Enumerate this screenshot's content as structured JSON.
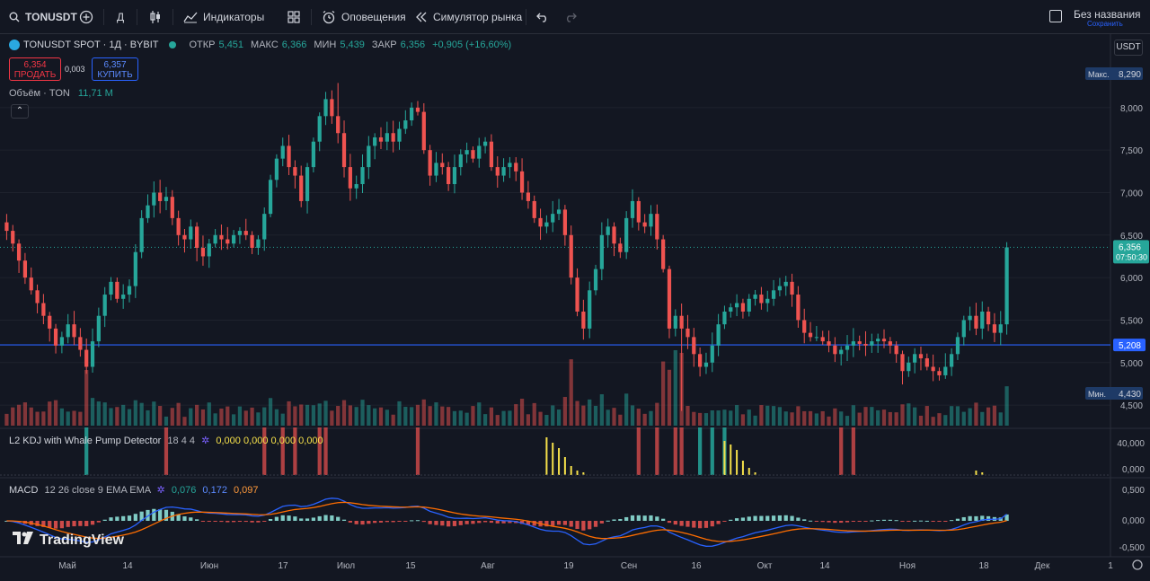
{
  "toolbar": {
    "symbol": "TONUSDT",
    "interval": "Д",
    "indicators_label": "Индикаторы",
    "alerts_label": "Оповещения",
    "replay_label": "Симулятор рынка",
    "layout_name": "Без названия",
    "save_label": "Сохранить"
  },
  "legend": {
    "title": "TONUSDT SPOT · 1Д · BYBIT",
    "open_label": "ОТКР",
    "open": "5,451",
    "high_label": "МАКС",
    "high": "6,366",
    "low_label": "МИН",
    "low": "5,439",
    "close_label": "ЗАКР",
    "close": "6,356",
    "change": "+0,905 (+16,60%)"
  },
  "trade": {
    "sell_price": "6,354",
    "sell_label": "ПРОДАТЬ",
    "spread": "0,003",
    "buy_price": "6,357",
    "buy_label": "КУПИТЬ"
  },
  "volume_legend": {
    "name": "Объём · TON",
    "value": "11,71 M"
  },
  "kdj_legend": {
    "name": "L2 KDJ with Whale Pump Detector",
    "params": "18 4 4",
    "values": [
      "0,000",
      "0,000",
      "0,000",
      "0,000"
    ]
  },
  "macd_legend": {
    "name": "MACD",
    "params": "12 26 close 9 EMA EMA",
    "v1": "0,076",
    "v2": "0,172",
    "v3": "0,097"
  },
  "branding": {
    "logo_text": "TradingView"
  },
  "colors": {
    "up": "#26a69a",
    "down": "#ef5350",
    "background": "#131722",
    "hline": "#2962ff"
  },
  "chart_data": {
    "type": "candlestick",
    "currency": "USDT",
    "ylim": [
      4.3,
      8.4
    ],
    "price_ticks": [
      "8,000",
      "7,500",
      "7,000",
      "6,500",
      "6,000",
      "5,500",
      "5,000",
      "4,500"
    ],
    "x_ticks": [
      "Май",
      "14",
      "Июн",
      "17",
      "Июл",
      "15",
      "Авг",
      "19",
      "Сен",
      "16",
      "Окт",
      "14",
      "Ноя",
      "18",
      "Дек",
      "1"
    ],
    "max_label": "Макс.",
    "max_value": "8,290",
    "min_label": "Мин.",
    "min_value": "4,430",
    "last_price": "6,356",
    "countdown": "07:50:30",
    "hline_value": "5,208",
    "close_series": [
      6.55,
      6.4,
      6.2,
      6.0,
      5.85,
      5.7,
      5.55,
      5.4,
      5.2,
      5.3,
      5.45,
      5.3,
      5.15,
      4.95,
      5.25,
      5.55,
      5.8,
      5.95,
      5.75,
      5.8,
      5.9,
      6.3,
      6.7,
      6.85,
      7.0,
      6.9,
      6.95,
      6.7,
      6.5,
      6.45,
      6.6,
      6.35,
      6.25,
      6.4,
      6.5,
      6.45,
      6.4,
      6.5,
      6.55,
      6.5,
      6.35,
      6.45,
      6.75,
      7.15,
      7.4,
      7.55,
      7.3,
      7.2,
      6.9,
      7.3,
      7.6,
      7.9,
      8.1,
      7.9,
      7.7,
      7.3,
      7.05,
      7.1,
      7.3,
      7.55,
      7.65,
      7.6,
      7.7,
      7.6,
      7.75,
      7.85,
      8.0,
      7.95,
      7.5,
      7.2,
      7.35,
      7.3,
      7.1,
      7.3,
      7.45,
      7.5,
      7.4,
      7.55,
      7.6,
      7.3,
      7.2,
      7.3,
      7.35,
      7.25,
      7.0,
      6.9,
      6.7,
      6.6,
      6.65,
      6.75,
      6.8,
      6.5,
      6.0,
      5.6,
      5.4,
      5.85,
      6.1,
      6.5,
      6.6,
      6.4,
      6.3,
      6.7,
      6.9,
      6.65,
      6.6,
      6.75,
      6.45,
      6.1,
      5.4,
      5.55,
      5.4,
      5.3,
      5.1,
      4.95,
      5.0,
      5.2,
      5.45,
      5.6,
      5.65,
      5.7,
      5.6,
      5.75,
      5.8,
      5.7,
      5.75,
      5.85,
      5.9,
      5.95,
      5.8,
      5.5,
      5.35,
      5.3,
      5.3,
      5.25,
      5.2,
      5.1,
      5.15,
      5.2,
      5.25,
      5.22,
      5.2,
      5.25,
      5.28,
      5.25,
      5.2,
      5.1,
      4.9,
      5.0,
      5.1,
      5.05,
      4.95,
      4.9,
      4.85,
      4.95,
      5.1,
      5.3,
      5.5,
      5.55,
      5.4,
      5.6,
      5.45,
      5.35,
      5.45,
      6.356
    ],
    "highlights": {
      "max_close": 8.29,
      "min_low": 4.43
    }
  }
}
